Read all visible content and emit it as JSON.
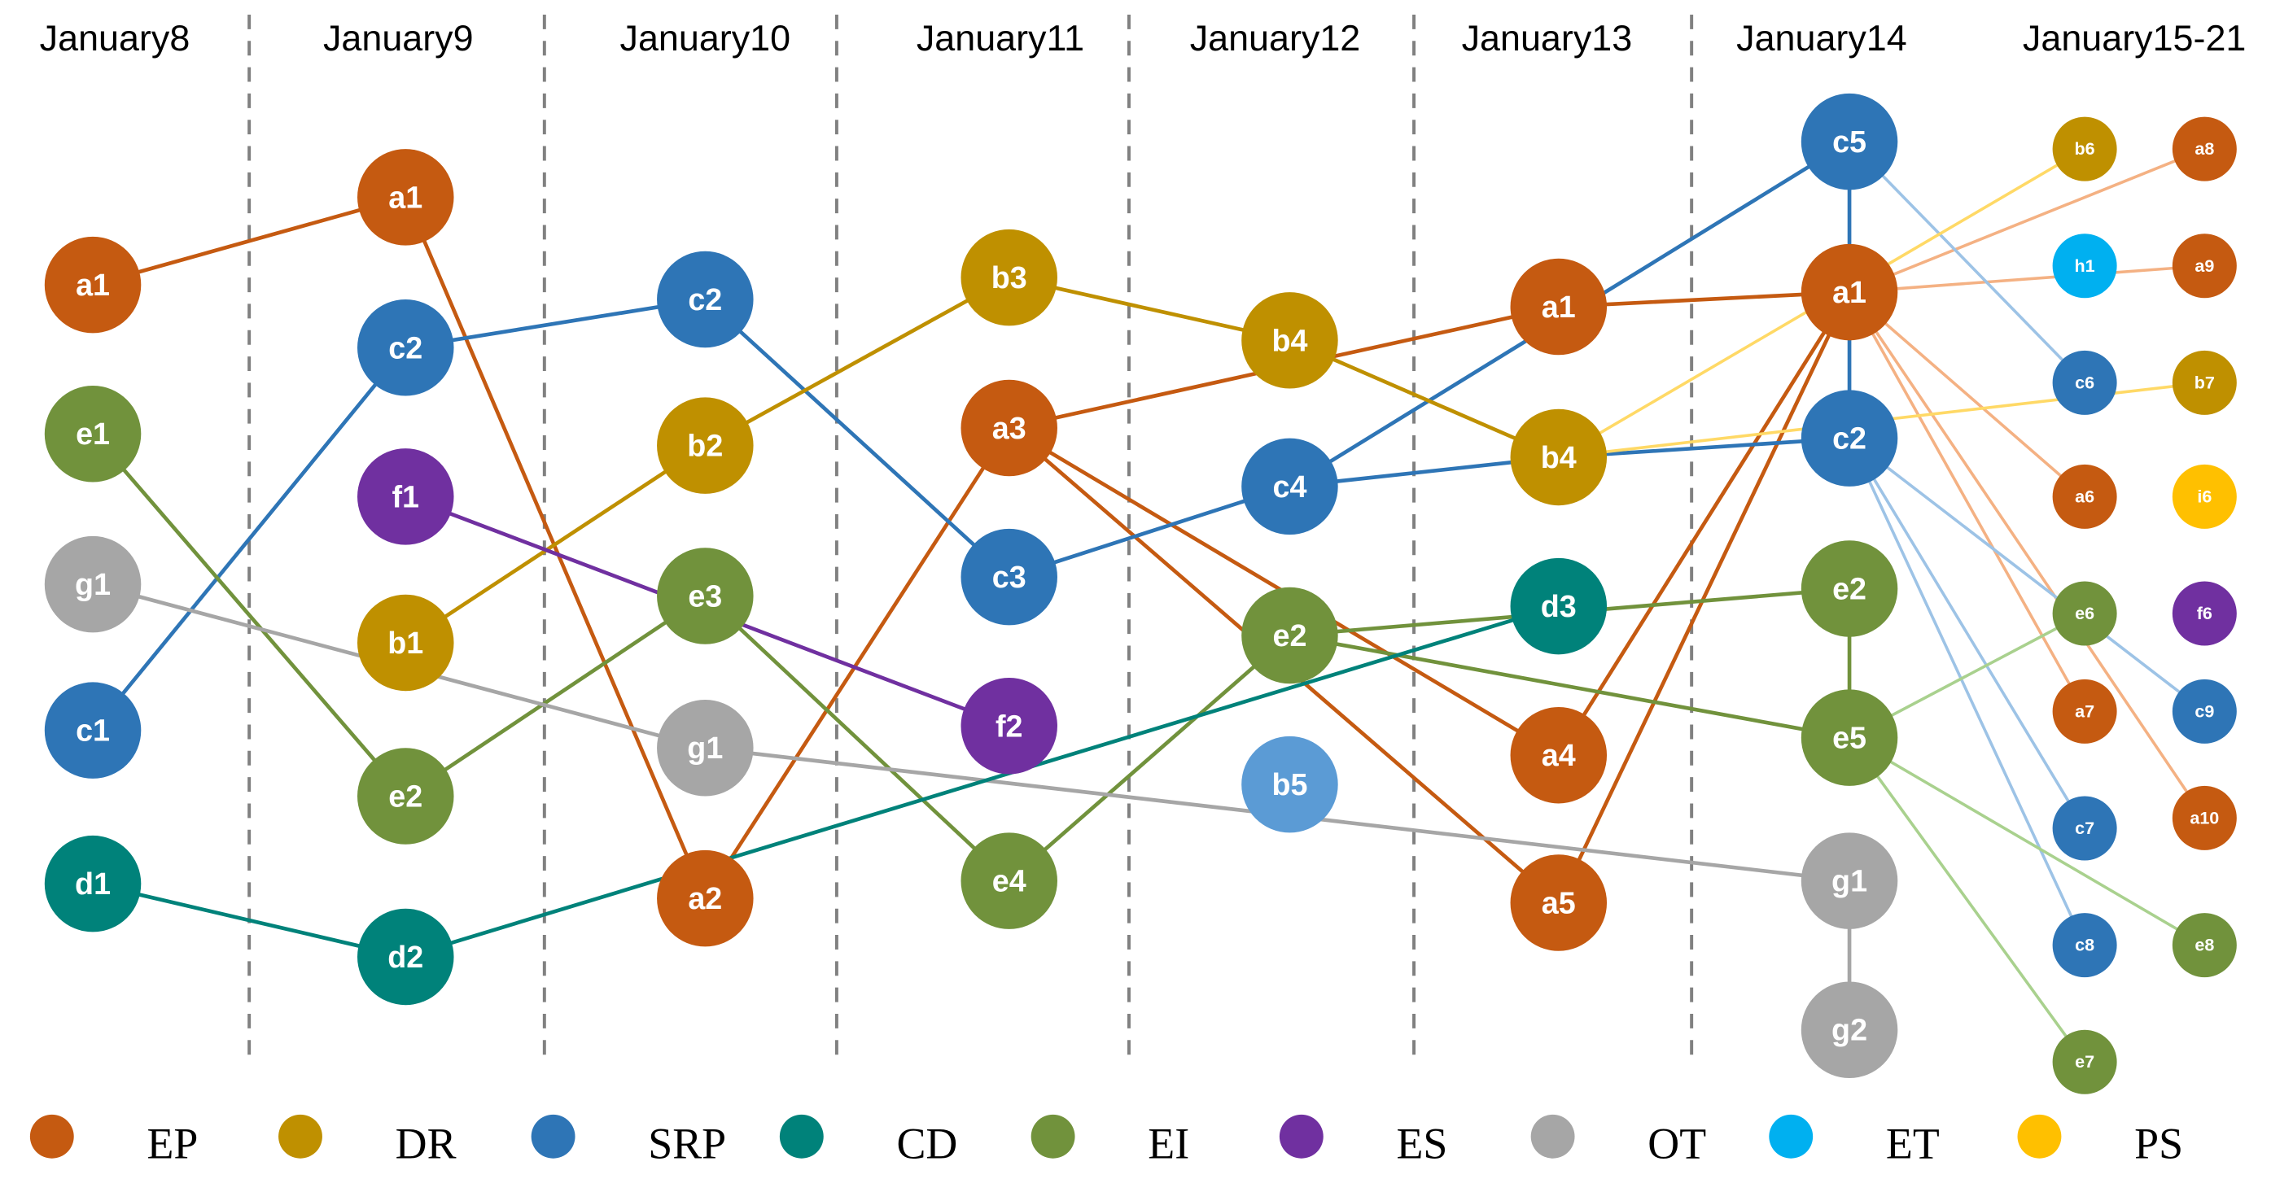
{
  "columns": [
    "January8",
    "January9",
    "January10",
    "January11",
    "January12",
    "January13",
    "January14",
    "January15-21"
  ],
  "nodes": [
    {
      "label": "a1"
    },
    {
      "label": "e1"
    },
    {
      "label": "g1"
    },
    {
      "label": "c1"
    },
    {
      "label": "d1"
    },
    {
      "label": "a1"
    },
    {
      "label": "c2"
    },
    {
      "label": "f1"
    },
    {
      "label": "b1"
    },
    {
      "label": "e2"
    },
    {
      "label": "d2"
    },
    {
      "label": "c2"
    },
    {
      "label": "b2"
    },
    {
      "label": "e3"
    },
    {
      "label": "g1"
    },
    {
      "label": "a2"
    },
    {
      "label": "b3"
    },
    {
      "label": "a3"
    },
    {
      "label": "c3"
    },
    {
      "label": "f2"
    },
    {
      "label": "e4"
    },
    {
      "label": "b4"
    },
    {
      "label": "c4"
    },
    {
      "label": "e2"
    },
    {
      "label": "b5"
    },
    {
      "label": "a1"
    },
    {
      "label": "b4"
    },
    {
      "label": "d3"
    },
    {
      "label": "a4"
    },
    {
      "label": "a5"
    },
    {
      "label": "c5"
    },
    {
      "label": "a1"
    },
    {
      "label": "c2"
    },
    {
      "label": "e2"
    },
    {
      "label": "e5"
    },
    {
      "label": "g1"
    },
    {
      "label": "g2"
    },
    {
      "label": "b6"
    },
    {
      "label": "h1"
    },
    {
      "label": "c6"
    },
    {
      "label": "a6"
    },
    {
      "label": "e6"
    },
    {
      "label": "a7"
    },
    {
      "label": "c7"
    },
    {
      "label": "c8"
    },
    {
      "label": "e7"
    },
    {
      "label": "a8"
    },
    {
      "label": "a9"
    },
    {
      "label": "b7"
    },
    {
      "label": "i6"
    },
    {
      "label": "f6"
    },
    {
      "label": "c9"
    },
    {
      "label": "a10"
    },
    {
      "label": "e8"
    }
  ],
  "legend": [
    "EP",
    "DR",
    "SRP",
    "CD",
    "EI",
    "ES",
    "OT",
    "ET",
    "PS"
  ]
}
